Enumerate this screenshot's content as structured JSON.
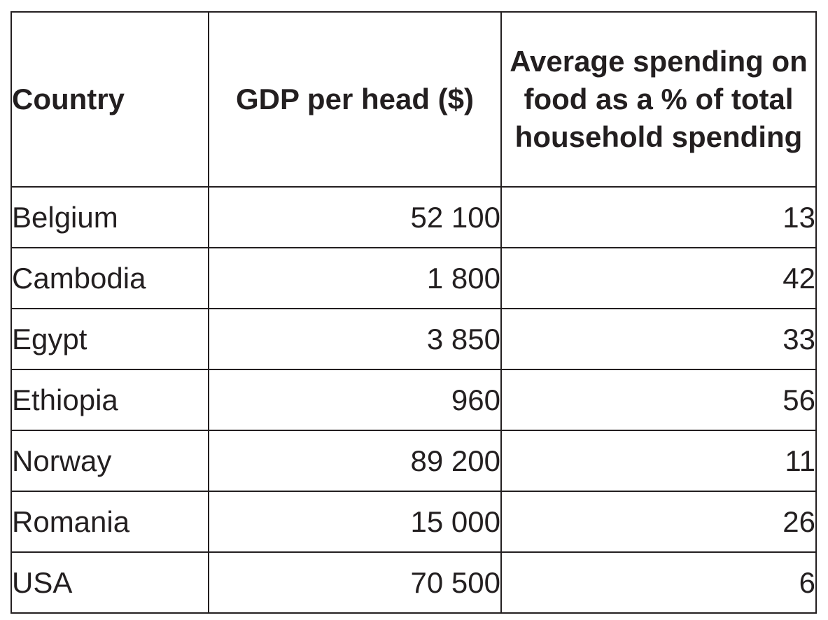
{
  "table": {
    "headers": {
      "country": "Country",
      "gdp": "GDP per head ($)",
      "food": "Average spending on food as a % of total household spending"
    },
    "rows": [
      {
        "country": "Belgium",
        "gdp": "52 100",
        "food": "13"
      },
      {
        "country": "Cambodia",
        "gdp": "1 800",
        "food": "42"
      },
      {
        "country": "Egypt",
        "gdp": "3 850",
        "food": "33"
      },
      {
        "country": "Ethiopia",
        "gdp": "960",
        "food": "56"
      },
      {
        "country": "Norway",
        "gdp": "89 200",
        "food": "11"
      },
      {
        "country": "Romania",
        "gdp": "15 000",
        "food": "26"
      },
      {
        "country": "USA",
        "gdp": "70 500",
        "food": "6"
      }
    ]
  }
}
